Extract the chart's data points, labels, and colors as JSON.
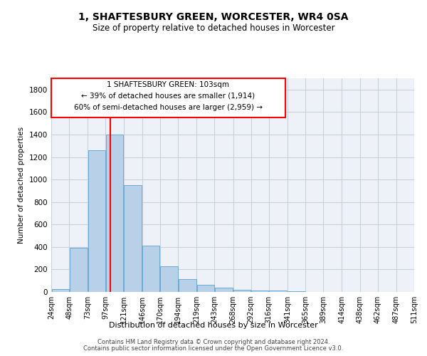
{
  "title": "1, SHAFTESBURY GREEN, WORCESTER, WR4 0SA",
  "subtitle": "Size of property relative to detached houses in Worcester",
  "xlabel": "Distribution of detached houses by size in Worcester",
  "ylabel": "Number of detached properties",
  "bar_color": "#b8d0e8",
  "bar_edge_color": "#6aaad4",
  "background_color": "#eef2f8",
  "grid_color": "#c8d0dc",
  "red_line_x": 103,
  "annotation_title": "1 SHAFTESBURY GREEN: 103sqm",
  "annotation_line1": "← 39% of detached houses are smaller (1,914)",
  "annotation_line2": "60% of semi-detached houses are larger (2,959) →",
  "bin_edges": [
    24,
    48,
    73,
    97,
    121,
    146,
    170,
    194,
    219,
    243,
    268,
    292,
    316,
    341,
    365,
    389,
    414,
    438,
    462,
    487,
    511
  ],
  "bin_labels": [
    "24sqm",
    "48sqm",
    "73sqm",
    "97sqm",
    "121sqm",
    "146sqm",
    "170sqm",
    "194sqm",
    "219sqm",
    "243sqm",
    "268sqm",
    "292sqm",
    "316sqm",
    "341sqm",
    "365sqm",
    "389sqm",
    "414sqm",
    "438sqm",
    "462sqm",
    "487sqm",
    "511sqm"
  ],
  "values": [
    25,
    390,
    1260,
    1400,
    950,
    410,
    230,
    115,
    65,
    40,
    20,
    15,
    10,
    5,
    3,
    2,
    1,
    1,
    1,
    0
  ],
  "ylim": [
    0,
    1900
  ],
  "yticks": [
    0,
    200,
    400,
    600,
    800,
    1000,
    1200,
    1400,
    1600,
    1800
  ],
  "footer1": "Contains HM Land Registry data © Crown copyright and database right 2024.",
  "footer2": "Contains public sector information licensed under the Open Government Licence v3.0."
}
